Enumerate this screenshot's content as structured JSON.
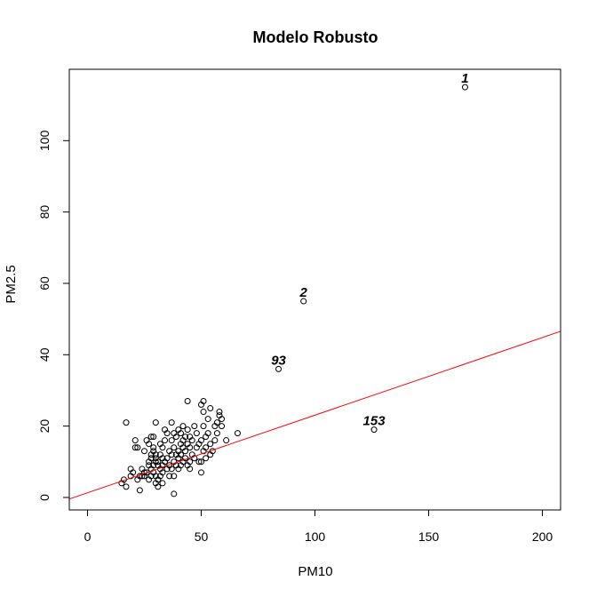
{
  "chart_data": {
    "type": "scatter",
    "title": "Modelo Robusto",
    "xlabel": "PM10",
    "ylabel": "PM2.5",
    "xlim": [
      -8,
      208
    ],
    "ylim": [
      -3.5,
      120
    ],
    "xticks": [
      0,
      50,
      100,
      150,
      200
    ],
    "yticks": [
      0,
      20,
      40,
      60,
      80,
      100
    ],
    "points_color": "#000000",
    "fit_line": {
      "intercept": 1.3,
      "slope": 0.2176,
      "color": "#ff0000"
    },
    "labeled_points": [
      {
        "label": "1",
        "x": 166,
        "y": 115
      },
      {
        "label": "2",
        "x": 95,
        "y": 55
      },
      {
        "label": "93",
        "x": 84,
        "y": 36
      },
      {
        "label": "153",
        "x": 126,
        "y": 19
      }
    ],
    "points": [
      [
        15,
        4
      ],
      [
        16,
        5
      ],
      [
        17,
        3
      ],
      [
        17,
        21
      ],
      [
        19,
        6
      ],
      [
        19,
        8
      ],
      [
        20,
        7
      ],
      [
        21,
        14
      ],
      [
        21,
        16
      ],
      [
        22,
        5
      ],
      [
        22,
        14
      ],
      [
        23,
        6
      ],
      [
        23,
        2
      ],
      [
        24,
        6
      ],
      [
        24,
        8
      ],
      [
        25,
        7
      ],
      [
        25,
        6
      ],
      [
        25,
        13
      ],
      [
        26,
        16
      ],
      [
        26,
        7
      ],
      [
        27,
        9
      ],
      [
        27,
        5
      ],
      [
        27,
        10
      ],
      [
        27,
        15
      ],
      [
        28,
        12
      ],
      [
        28,
        17
      ],
      [
        28,
        6
      ],
      [
        28,
        8
      ],
      [
        28,
        11
      ],
      [
        29,
        14
      ],
      [
        29,
        9
      ],
      [
        29,
        7
      ],
      [
        29,
        13
      ],
      [
        29,
        17
      ],
      [
        30,
        10
      ],
      [
        30,
        6
      ],
      [
        30,
        12
      ],
      [
        30,
        4
      ],
      [
        30,
        21
      ],
      [
        30,
        11
      ],
      [
        31,
        9
      ],
      [
        31,
        10
      ],
      [
        31,
        5
      ],
      [
        31,
        3
      ],
      [
        32,
        8
      ],
      [
        32,
        12
      ],
      [
        32,
        15
      ],
      [
        32,
        6
      ],
      [
        33,
        14
      ],
      [
        33,
        11
      ],
      [
        33,
        9
      ],
      [
        33,
        7
      ],
      [
        33,
        4
      ],
      [
        34,
        10
      ],
      [
        34,
        16
      ],
      [
        34,
        19
      ],
      [
        35,
        11
      ],
      [
        35,
        8
      ],
      [
        35,
        18
      ],
      [
        36,
        13
      ],
      [
        36,
        9
      ],
      [
        36,
        6
      ],
      [
        37,
        12
      ],
      [
        37,
        16
      ],
      [
        37,
        21
      ],
      [
        37,
        8
      ],
      [
        38,
        10
      ],
      [
        38,
        14
      ],
      [
        38,
        18
      ],
      [
        38,
        1
      ],
      [
        38,
        6
      ],
      [
        39,
        9
      ],
      [
        39,
        17
      ],
      [
        39,
        12
      ],
      [
        40,
        13
      ],
      [
        40,
        11
      ],
      [
        40,
        19
      ],
      [
        40,
        8
      ],
      [
        41,
        9
      ],
      [
        41,
        15
      ],
      [
        41,
        18
      ],
      [
        41,
        12
      ],
      [
        42,
        16
      ],
      [
        42,
        20
      ],
      [
        42,
        10
      ],
      [
        42,
        14
      ],
      [
        43,
        11
      ],
      [
        43,
        17
      ],
      [
        43,
        13
      ],
      [
        44,
        15
      ],
      [
        44,
        27
      ],
      [
        44,
        9
      ],
      [
        44,
        19
      ],
      [
        45,
        14
      ],
      [
        45,
        10
      ],
      [
        45,
        8
      ],
      [
        45,
        17
      ],
      [
        46,
        12
      ],
      [
        46,
        16
      ],
      [
        47,
        20
      ],
      [
        47,
        11
      ],
      [
        48,
        18
      ],
      [
        48,
        14
      ],
      [
        49,
        10
      ],
      [
        49,
        15
      ],
      [
        50,
        7
      ],
      [
        50,
        16
      ],
      [
        50,
        10
      ],
      [
        50,
        26
      ],
      [
        51,
        13
      ],
      [
        51,
        27
      ],
      [
        51,
        20
      ],
      [
        51,
        24
      ],
      [
        52,
        17
      ],
      [
        52,
        11
      ],
      [
        52,
        14
      ],
      [
        53,
        22
      ],
      [
        53,
        18
      ],
      [
        54,
        15
      ],
      [
        54,
        25
      ],
      [
        54,
        12
      ],
      [
        55,
        13
      ],
      [
        56,
        16
      ],
      [
        56,
        20
      ],
      [
        57,
        18
      ],
      [
        57,
        21
      ],
      [
        58,
        23
      ],
      [
        58,
        24
      ],
      [
        59,
        20
      ],
      [
        59,
        22
      ],
      [
        61,
        16
      ],
      [
        66,
        18
      ]
    ]
  }
}
